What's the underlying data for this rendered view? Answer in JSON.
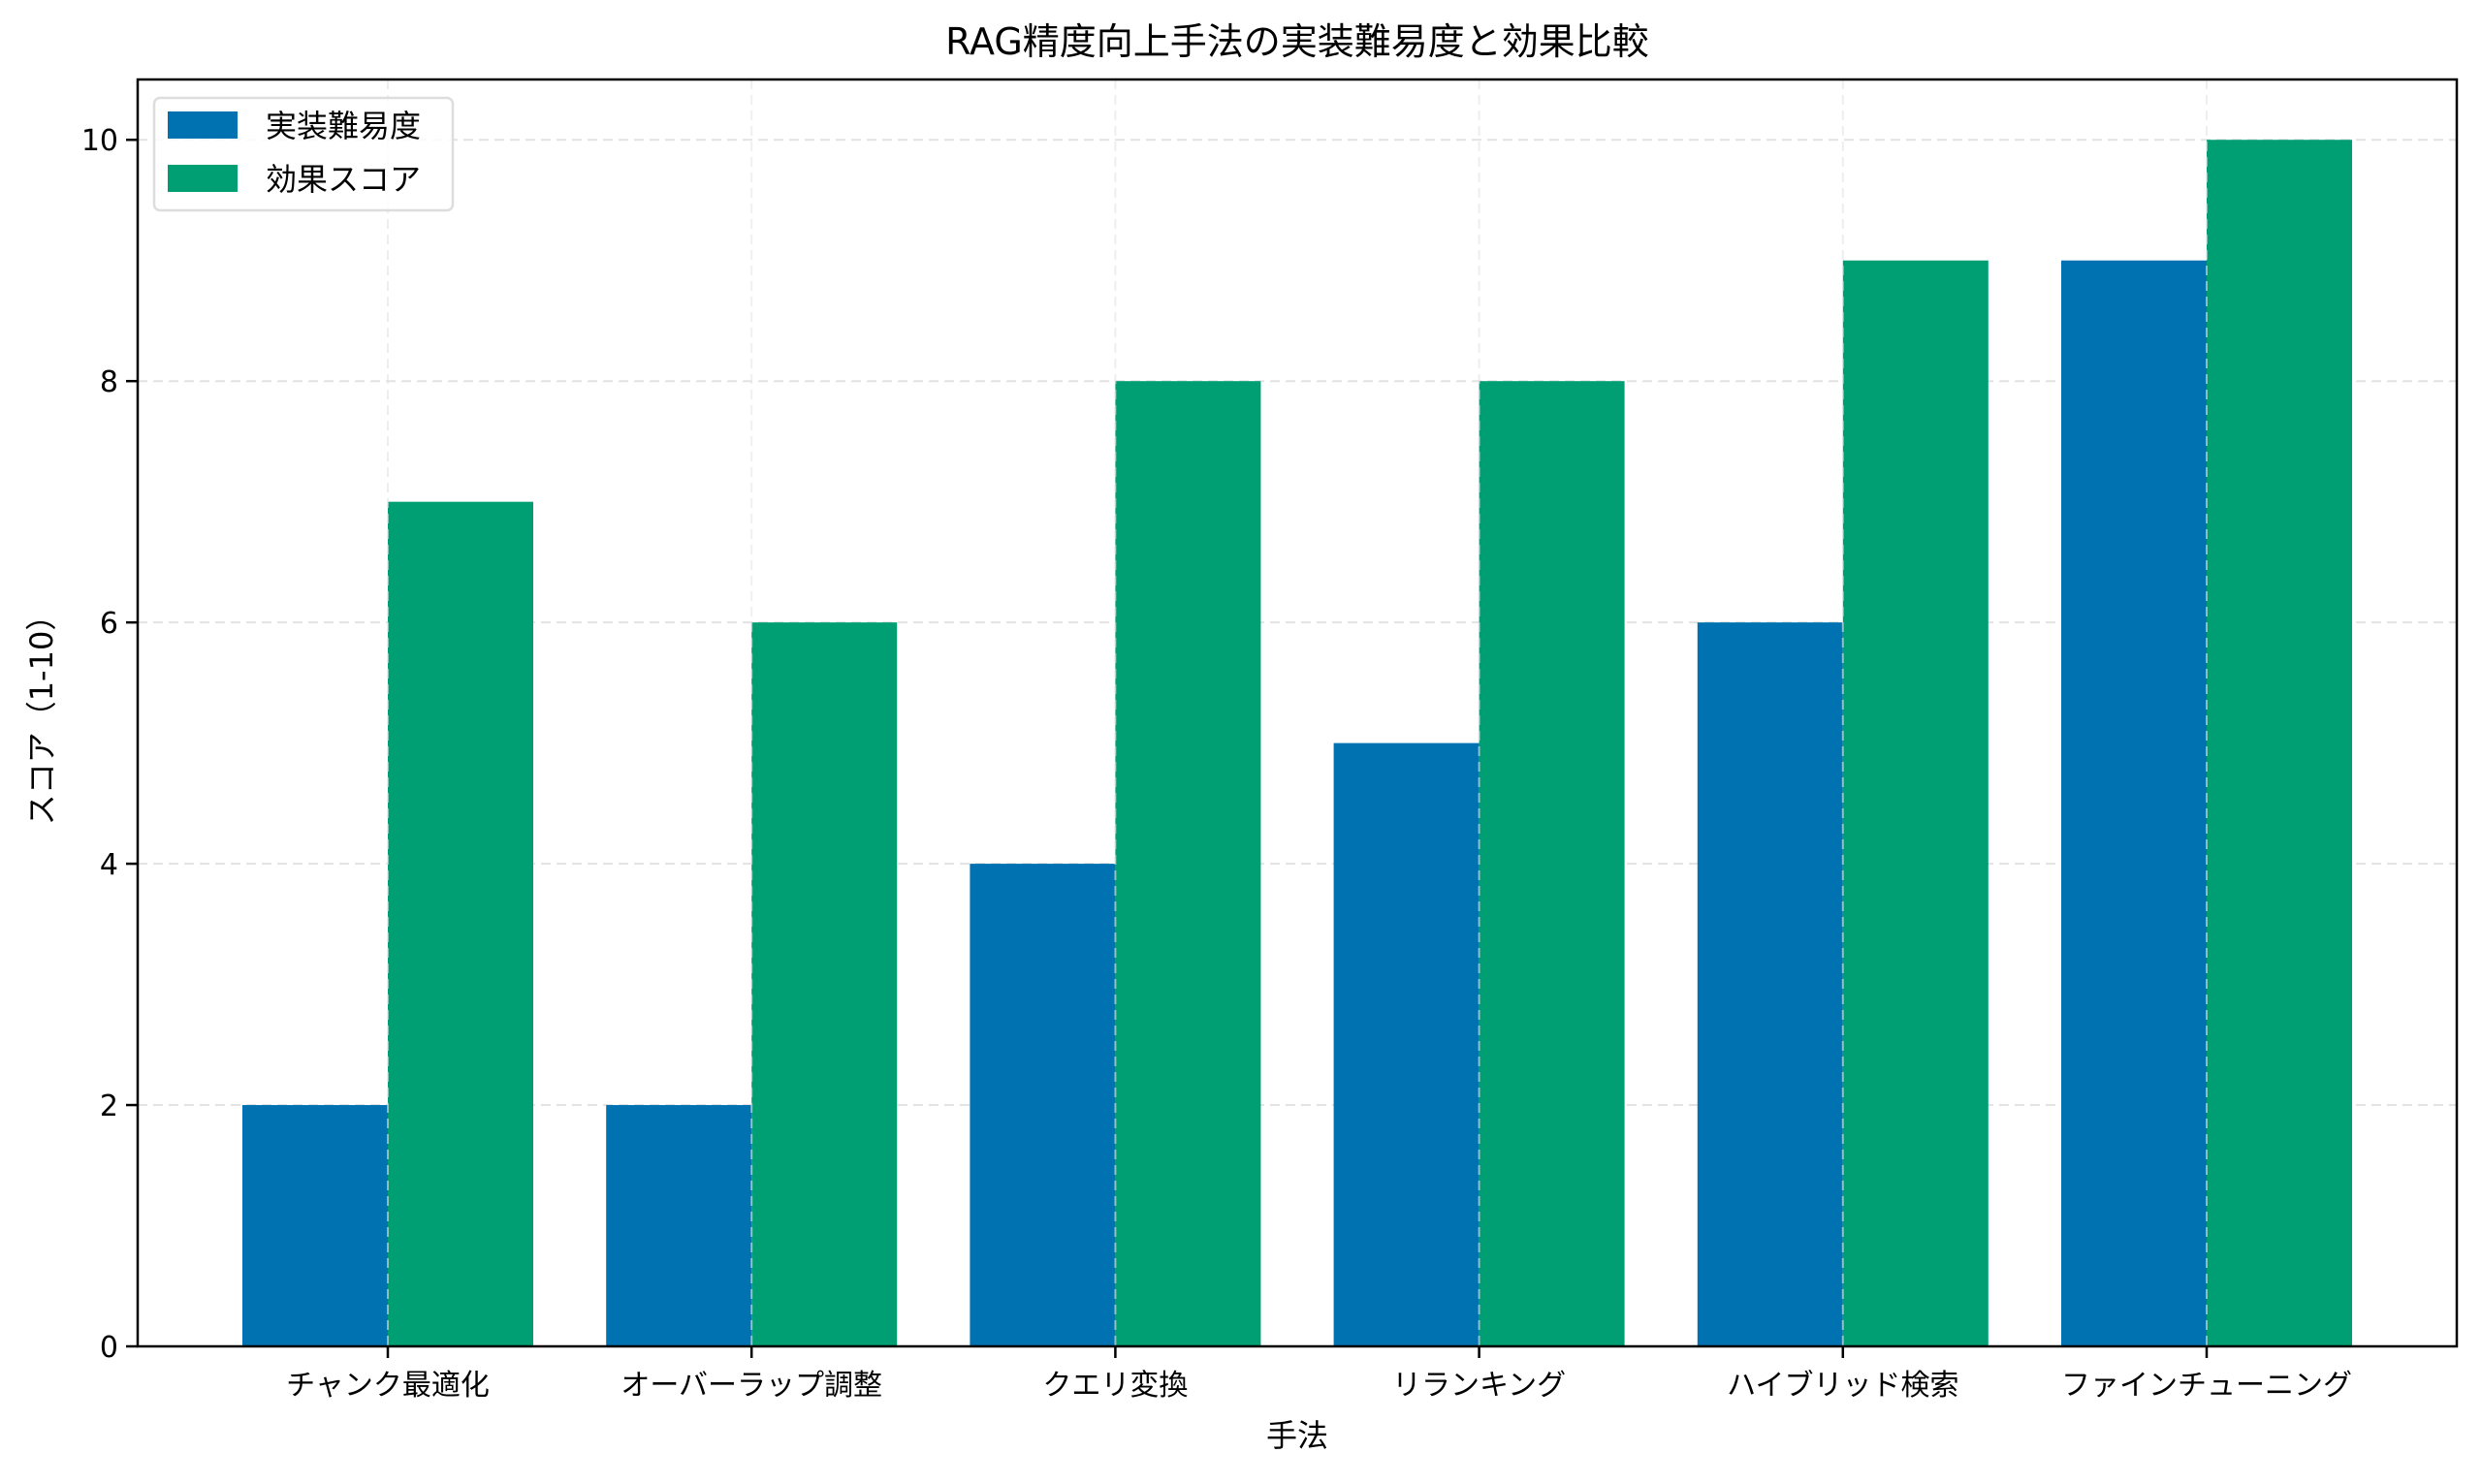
{
  "chart_data": {
    "type": "bar",
    "title": "RAG精度向上手法の実装難易度と効果比較",
    "xlabel": "手法",
    "ylabel": "スコア（1-10）",
    "categories": [
      "チャンク最適化",
      "オーバーラップ調整",
      "クエリ変換",
      "リランキング",
      "ハイブリッド検索",
      "ファインチューニング"
    ],
    "series": [
      {
        "name": "実装難易度",
        "values": [
          2,
          2,
          4,
          5,
          6,
          9
        ],
        "color": "#0072B2"
      },
      {
        "name": "効果スコア",
        "values": [
          7,
          6,
          8,
          8,
          9,
          10
        ],
        "color": "#009E73"
      }
    ],
    "ylim": [
      0,
      10.5
    ],
    "yticks": [
      0,
      2,
      4,
      6,
      8,
      10
    ],
    "grid": true,
    "legend_position": "top-left"
  }
}
